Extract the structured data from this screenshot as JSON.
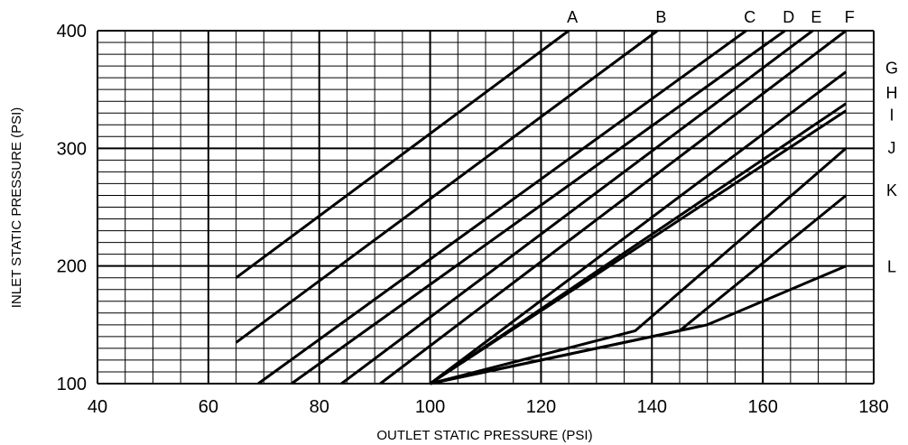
{
  "chart_data": {
    "type": "line",
    "title": "",
    "xlabel": "OUTLET STATIC PRESSURE (PSI)",
    "ylabel": "INLET STATIC PRESSURE (PSI)",
    "xlim": [
      40,
      180
    ],
    "ylim": [
      100,
      400
    ],
    "xticks": [
      "40",
      "60",
      "80",
      "100",
      "120",
      "140",
      "160",
      "180"
    ],
    "yticks": [
      "100",
      "200",
      "300",
      "400"
    ],
    "grid": {
      "major_x_step": 20,
      "minor_x_step": 5,
      "major_y_step": 100,
      "minor_y_step": 10
    },
    "series": [
      {
        "name": "A",
        "label_side": "top",
        "points": [
          [
            65,
            190
          ],
          [
            125,
            400
          ]
        ]
      },
      {
        "name": "B",
        "label_side": "top",
        "points": [
          [
            65,
            135
          ],
          [
            141,
            400
          ]
        ]
      },
      {
        "name": "C",
        "label_side": "top",
        "points": [
          [
            69,
            100
          ],
          [
            157,
            400
          ]
        ]
      },
      {
        "name": "D",
        "label_side": "top",
        "points": [
          [
            75,
            100
          ],
          [
            164,
            400
          ]
        ]
      },
      {
        "name": "E",
        "label_side": "top",
        "points": [
          [
            84,
            100
          ],
          [
            169,
            400
          ]
        ]
      },
      {
        "name": "F",
        "label_side": "top",
        "points": [
          [
            91,
            100
          ],
          [
            175,
            400
          ]
        ]
      },
      {
        "name": "G",
        "label_side": "right",
        "points": [
          [
            100,
            100
          ],
          [
            175,
            365
          ]
        ]
      },
      {
        "name": "H",
        "label_side": "right",
        "points": [
          [
            100,
            100
          ],
          [
            175,
            338
          ]
        ]
      },
      {
        "name": "I",
        "label_side": "right",
        "points": [
          [
            100,
            100
          ],
          [
            175,
            332
          ]
        ]
      },
      {
        "name": "J",
        "label_side": "right",
        "points": [
          [
            100,
            100
          ],
          [
            137,
            145
          ],
          [
            175,
            300
          ]
        ]
      },
      {
        "name": "K",
        "label_side": "right",
        "points": [
          [
            100,
            100
          ],
          [
            130,
            130
          ],
          [
            145,
            145
          ],
          [
            175,
            260
          ]
        ]
      },
      {
        "name": "L",
        "label_side": "right",
        "points": [
          [
            100,
            100
          ],
          [
            130,
            130
          ],
          [
            140,
            140
          ],
          [
            150,
            150
          ],
          [
            175,
            200
          ]
        ]
      }
    ],
    "right_label_values": {
      "G": 369,
      "H": 348,
      "I": 329,
      "J": 301,
      "K": 265,
      "L": 200
    }
  }
}
